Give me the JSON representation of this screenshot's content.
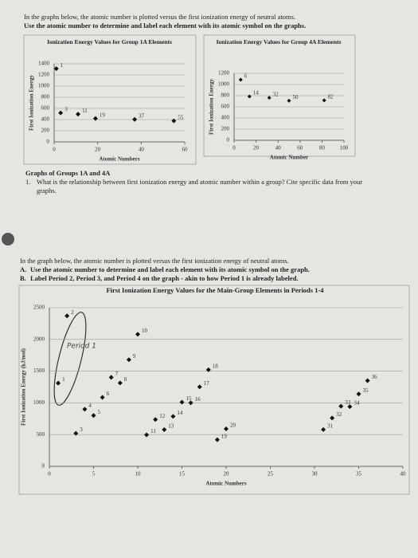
{
  "intro": [
    "In the graphs below, the atomic number is plotted versus the first ionization energy of neutral atoms.",
    "Use the atomic number to determine and label each element with its atomic symbol on the graphs."
  ],
  "section_title": "Graphs of Groups 1A and 4A",
  "question": {
    "number": "1.",
    "text": "What is the relationship between first ionization energy and atomic number within a group? Cite specific data from your graphs."
  },
  "instructions": {
    "intro": "In the graph below, the atomic number is plotted versus the first ionization energy of neutral atoms.",
    "items": [
      {
        "letter": "A.",
        "text": "Use the atomic number to determine and label each element with its atomic symbol on the graph."
      },
      {
        "letter": "B.",
        "text": "Label Period 2, Period 3, and Period 4 on the graph - akin to how Period 1 is already labeled."
      }
    ]
  },
  "chart_data": [
    {
      "type": "scatter",
      "title": "Ionization Energy Values for Group 1A Elements",
      "xlabel": "Atomic Numbers",
      "ylabel": "First Ionization Energy",
      "x": [
        1,
        3,
        11,
        19,
        37,
        55
      ],
      "values": [
        1312,
        520,
        496,
        419,
        403,
        376
      ],
      "color": "#111111",
      "xlim": [
        0,
        60
      ],
      "xticks": [
        0,
        20,
        40,
        60
      ],
      "ylim": [
        0,
        1400
      ],
      "yticks": [
        0,
        200,
        400,
        600,
        800,
        1000,
        1200,
        1400
      ],
      "grid": true
    },
    {
      "type": "scatter",
      "title": "Ionization Energy Values for Group 4A Elements",
      "xlabel": "Atomic Number",
      "ylabel": "First Ionization Energy",
      "x": [
        6,
        14,
        32,
        50,
        82
      ],
      "values": [
        1086,
        786,
        762,
        709,
        716
      ],
      "color": "#111111",
      "xlim": [
        0,
        100
      ],
      "xticks": [
        0,
        20,
        40,
        60,
        80,
        100
      ],
      "ylim": [
        0,
        1200
      ],
      "yticks": [
        0,
        200,
        400,
        600,
        800,
        1000,
        1200
      ],
      "grid": true
    },
    {
      "type": "scatter",
      "title": "First Ionization Energy Values for the Main-Group Elements in Periods 1-4",
      "xlabel": "Atomic Numbers",
      "ylabel": "First Ionization Energy (kJ/mol)",
      "annotation": "Period 1",
      "x": [
        1,
        2,
        3,
        4,
        5,
        6,
        7,
        8,
        9,
        10,
        11,
        12,
        13,
        14,
        15,
        16,
        17,
        18,
        19,
        20,
        31,
        32,
        33,
        34,
        35,
        36
      ],
      "values": [
        1312,
        2372,
        520,
        900,
        801,
        1086,
        1402,
        1314,
        1681,
        2081,
        496,
        738,
        578,
        786,
        1012,
        1000,
        1251,
        1521,
        419,
        590,
        579,
        762,
        947,
        941,
        1140,
        1351
      ],
      "color": "#111111",
      "xlim": [
        0,
        40
      ],
      "xticks": [
        0,
        5,
        10,
        15,
        20,
        25,
        30,
        35,
        40
      ],
      "ylim": [
        0,
        2500
      ],
      "yticks": [
        0,
        500,
        1000,
        1500,
        2000,
        2500
      ],
      "grid": true
    }
  ]
}
